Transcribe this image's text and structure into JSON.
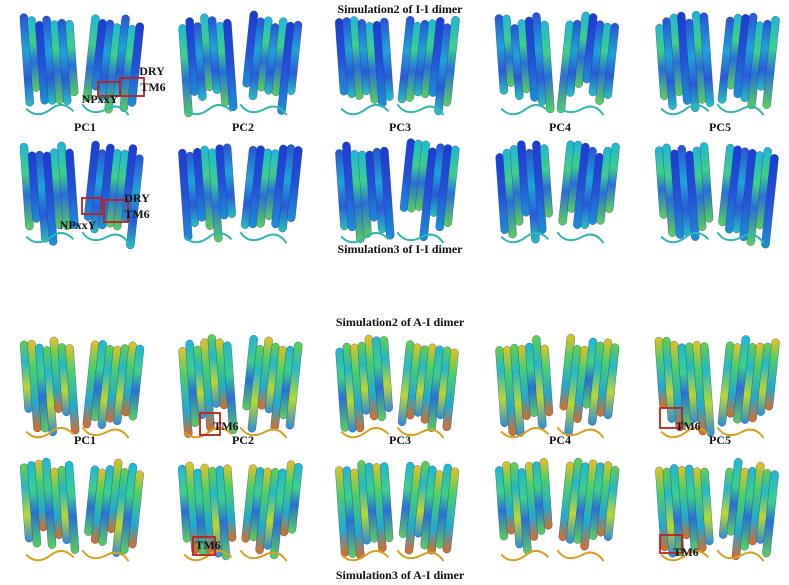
{
  "groups": [
    {
      "title": "Simulation2 of I-I dimer",
      "labels": [
        "PC1",
        "PC2",
        "PC3",
        "PC4",
        "PC5"
      ],
      "caption": "Simulation3 of I-I dimer",
      "annotations": [
        "DRY",
        "TM6",
        "NPxxY",
        "DRY",
        "TM6",
        "NPxxY"
      ]
    },
    {
      "title": "Simulation2 of A-I dimer",
      "labels": [
        "PC1",
        "PC2",
        "PC3",
        "PC4",
        "PC5"
      ],
      "caption": "Simulation3 of A-I dimer",
      "annotations": [
        "TM6",
        "TM6",
        "TM6",
        "TM6"
      ]
    }
  ]
}
